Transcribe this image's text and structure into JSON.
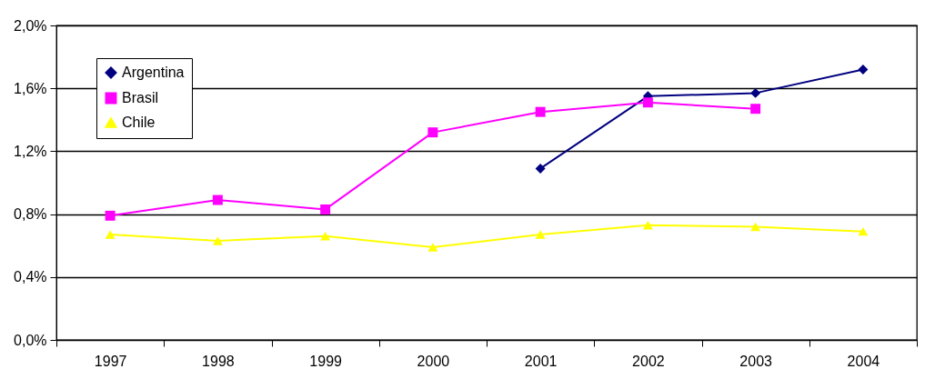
{
  "chart_data": {
    "type": "line",
    "categories": [
      "1997",
      "1998",
      "1999",
      "2000",
      "2001",
      "2002",
      "2003",
      "2004"
    ],
    "series": [
      {
        "name": "Argentina",
        "color": "#000080",
        "marker": "diamond",
        "values": [
          null,
          null,
          null,
          null,
          1.09,
          1.55,
          1.57,
          1.72
        ]
      },
      {
        "name": "Brasil",
        "color": "#ff00ff",
        "marker": "square",
        "values": [
          0.79,
          0.89,
          0.83,
          1.32,
          1.45,
          1.51,
          1.47,
          null
        ]
      },
      {
        "name": "Chile",
        "color": "#ffff00",
        "marker": "triangle",
        "values": [
          0.67,
          0.63,
          0.66,
          0.59,
          0.67,
          0.73,
          0.72,
          0.69
        ]
      }
    ],
    "ylim": [
      0,
      2
    ],
    "yticks": [
      {
        "value": 0,
        "label": "0,0%"
      },
      {
        "value": 0.4,
        "label": "0,4%"
      },
      {
        "value": 0.8,
        "label": "0,8%"
      },
      {
        "value": 1.2,
        "label": "1,2%"
      },
      {
        "value": 1.6,
        "label": "1,6%"
      },
      {
        "value": 2,
        "label": "2,0%"
      }
    ],
    "grid": "y",
    "legend": "top left"
  }
}
